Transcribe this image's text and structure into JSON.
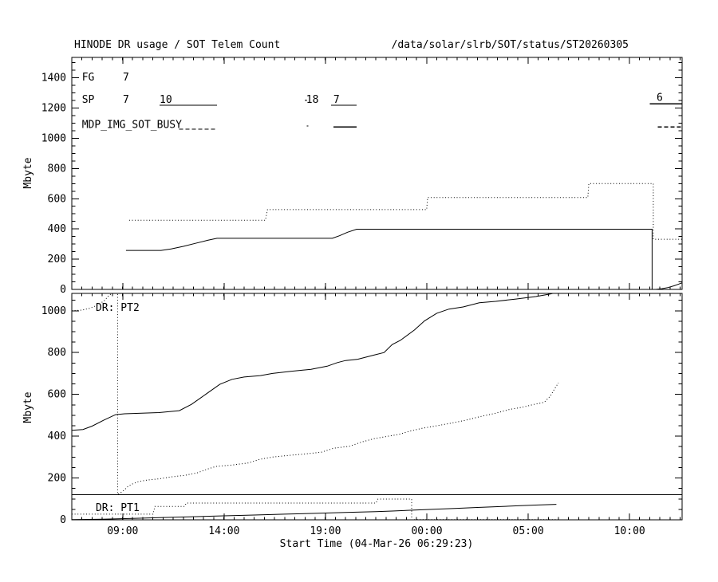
{
  "header": {
    "title": "HINODE DR usage / SOT Telem Count",
    "path": "/data/solar/slrb/SOT/status/ST20260305"
  },
  "colors": {
    "foreground": "#000000",
    "background": "#ffffff"
  },
  "chart_data": [
    {
      "id": "sot-telem-count-panel",
      "type": "line",
      "ylabel": "Mbyte",
      "ylim": [
        0,
        1535
      ],
      "yticks_major": [
        0,
        200,
        400,
        600,
        800,
        1000,
        1200,
        1400
      ],
      "ytick_minor_step": 50,
      "x_unit": "hours-since-start",
      "xlim": [
        0,
        30.1
      ],
      "xticks_major_hours": [
        2.51,
        7.51,
        12.51,
        17.51,
        22.51,
        27.51
      ],
      "xtick_labels": [],
      "xtick_minor_step_hours": 0.5,
      "grid": false,
      "series": [
        {
          "name": "telem-count-solid",
          "style": "solid",
          "points": [
            [
              2.67,
              258
            ],
            [
              4.4,
              258
            ],
            [
              4.9,
              268
            ],
            [
              5.5,
              285
            ],
            [
              6.1,
              305
            ],
            [
              6.7,
              325
            ],
            [
              7.16,
              338
            ],
            [
              12.85,
              338
            ],
            [
              13.2,
              355
            ],
            [
              13.6,
              378
            ],
            [
              14.05,
              398
            ],
            [
              28.62,
              398
            ],
            [
              28.62,
              0
            ],
            [
              28.8,
              0
            ],
            [
              29.1,
              5
            ],
            [
              29.4,
              12
            ],
            [
              29.7,
              24
            ],
            [
              29.95,
              36
            ],
            [
              30.1,
              44
            ]
          ]
        },
        {
          "name": "telem-count-dotted",
          "style": "dotted",
          "points": [
            [
              2.83,
              458
            ],
            [
              9.55,
              458
            ],
            [
              9.65,
              528
            ],
            [
              17.5,
              528
            ],
            [
              17.55,
              608
            ],
            [
              25.45,
              608
            ],
            [
              25.5,
              700
            ],
            [
              28.68,
              700
            ],
            [
              28.68,
              332
            ],
            [
              30.1,
              332
            ]
          ]
        }
      ],
      "annotations": {
        "texts": [
          {
            "text": "FG",
            "h": 0.5,
            "mb": 1402
          },
          {
            "text": "7",
            "h": 2.52,
            "mb": 1402
          },
          {
            "text": "SP",
            "h": 0.5,
            "mb": 1256
          },
          {
            "text": "7",
            "h": 2.52,
            "mb": 1256
          },
          {
            "text": "10",
            "h": 4.33,
            "mb": 1256
          },
          {
            "text": "18",
            "h": 11.56,
            "mb": 1256
          },
          {
            "text": "7",
            "h": 12.9,
            "mb": 1256
          },
          {
            "text": "6",
            "h": 28.84,
            "mb": 1268
          },
          {
            "text": "MDP_IMG_SOT_BUSY",
            "h": 0.5,
            "mb": 1088
          }
        ],
        "segments": [
          {
            "h1": 4.33,
            "h2": 7.16,
            "mb": 1218,
            "style": "solid"
          },
          {
            "h1": 12.78,
            "h2": 14.05,
            "mb": 1218,
            "style": "solid"
          },
          {
            "h1": 11.5,
            "h2": 11.58,
            "mb": 1252,
            "style": "solid"
          },
          {
            "h1": 28.5,
            "h2": 30.1,
            "mb": 1228,
            "style": "solid"
          },
          {
            "h1": 5.3,
            "h2": 7.16,
            "mb": 1060,
            "style": "dashed"
          },
          {
            "h1": 11.58,
            "h2": 11.66,
            "mb": 1082,
            "style": "solid"
          },
          {
            "h1": 12.9,
            "h2": 14.05,
            "mb": 1075,
            "style": "solid"
          },
          {
            "h1": 28.9,
            "h2": 30.1,
            "mb": 1075,
            "style": "dashed"
          }
        ]
      }
    },
    {
      "id": "dr-usage-panel",
      "type": "line",
      "ylabel": "Mbyte",
      "xlabel": "Start Time (04-Mar-26 06:29:23)",
      "ylim": [
        0,
        1083
      ],
      "yticks_major": [
        0,
        200,
        400,
        600,
        800,
        1000
      ],
      "ytick_minor_step": 50,
      "x_unit": "hours-since-start",
      "xlim": [
        0,
        30.1
      ],
      "xticks_major_hours": [
        2.51,
        7.51,
        12.51,
        17.51,
        22.51,
        27.51
      ],
      "xtick_labels": [
        "09:00",
        "14:00",
        "19:00",
        "00:00",
        "05:00",
        "10:00"
      ],
      "xtick_minor_step_hours": 0.5,
      "grid": false,
      "series": [
        {
          "name": "dr-pt2-solid",
          "style": "solid",
          "points": [
            [
              0,
              428
            ],
            [
              0.55,
              432
            ],
            [
              1.0,
              448
            ],
            [
              1.6,
              478
            ],
            [
              2.16,
              503
            ],
            [
              2.6,
              507
            ],
            [
              4.3,
              513
            ],
            [
              5.3,
              522
            ],
            [
              5.9,
              552
            ],
            [
              6.6,
              600
            ],
            [
              7.3,
              648
            ],
            [
              7.9,
              672
            ],
            [
              8.5,
              683
            ],
            [
              9.3,
              690
            ],
            [
              9.9,
              700
            ],
            [
              10.8,
              710
            ],
            [
              11.8,
              720
            ],
            [
              12.6,
              735
            ],
            [
              13.1,
              752
            ],
            [
              13.5,
              762
            ],
            [
              14.1,
              768
            ],
            [
              14.9,
              788
            ],
            [
              15.4,
              800
            ],
            [
              15.8,
              838
            ],
            [
              16.2,
              858
            ],
            [
              16.9,
              908
            ],
            [
              17.4,
              952
            ],
            [
              18.0,
              988
            ],
            [
              18.6,
              1008
            ],
            [
              19.3,
              1018
            ],
            [
              20.1,
              1038
            ],
            [
              20.9,
              1045
            ],
            [
              21.9,
              1056
            ],
            [
              22.9,
              1068
            ],
            [
              23.6,
              1080
            ],
            [
              24.0,
              1090
            ]
          ]
        },
        {
          "name": "dr-pt2-dotted",
          "style": "dotted",
          "points": [
            [
              0,
              1000
            ],
            [
              0.5,
              1003
            ],
            [
              0.9,
              1012
            ],
            [
              1.3,
              1028
            ],
            [
              1.6,
              1048
            ],
            [
              1.85,
              1075
            ],
            [
              2.0,
              1083
            ],
            [
              2.26,
              1083
            ],
            [
              2.26,
              122
            ],
            [
              2.5,
              135
            ],
            [
              2.75,
              158
            ],
            [
              3.0,
              172
            ],
            [
              3.3,
              183
            ],
            [
              3.7,
              190
            ],
            [
              4.3,
              196
            ],
            [
              4.9,
              205
            ],
            [
              5.6,
              213
            ],
            [
              6.2,
              225
            ],
            [
              6.7,
              243
            ],
            [
              7.1,
              255
            ],
            [
              7.9,
              262
            ],
            [
              8.7,
              272
            ],
            [
              9.3,
              290
            ],
            [
              9.9,
              300
            ],
            [
              10.7,
              308
            ],
            [
              11.5,
              315
            ],
            [
              12.3,
              323
            ],
            [
              12.9,
              342
            ],
            [
              13.7,
              352
            ],
            [
              14.3,
              372
            ],
            [
              14.9,
              388
            ],
            [
              15.5,
              398
            ],
            [
              16.1,
              408
            ],
            [
              16.7,
              425
            ],
            [
              17.3,
              438
            ],
            [
              17.9,
              448
            ],
            [
              18.7,
              462
            ],
            [
              19.4,
              476
            ],
            [
              20.2,
              495
            ],
            [
              20.9,
              510
            ],
            [
              21.6,
              528
            ],
            [
              22.2,
              538
            ],
            [
              22.8,
              552
            ],
            [
              23.3,
              562
            ],
            [
              23.6,
              592
            ],
            [
              23.8,
              625
            ],
            [
              24.0,
              655
            ]
          ]
        },
        {
          "name": "dr-pt1-solid",
          "style": "solid",
          "points": [
            [
              0,
              1
            ],
            [
              1.5,
              3
            ],
            [
              3,
              7
            ],
            [
              4.5,
              11
            ],
            [
              6,
              15
            ],
            [
              7.5,
              19
            ],
            [
              9,
              23
            ],
            [
              10.5,
              27
            ],
            [
              12,
              31
            ],
            [
              13.5,
              35
            ],
            [
              15,
              39
            ],
            [
              15.8,
              42
            ],
            [
              16.8,
              46
            ],
            [
              18,
              51
            ],
            [
              19,
              55
            ],
            [
              20,
              59
            ],
            [
              21,
              63
            ],
            [
              22,
              67
            ],
            [
              23,
              71
            ],
            [
              23.9,
              74
            ]
          ]
        },
        {
          "name": "dr-pt1-dotted",
          "style": "dotted",
          "points": [
            [
              0,
              27
            ],
            [
              4.0,
              27
            ],
            [
              4.1,
              64
            ],
            [
              5.55,
              64
            ],
            [
              5.65,
              80
            ],
            [
              15.0,
              80
            ],
            [
              15.1,
              99
            ],
            [
              16.76,
              99
            ],
            [
              16.76,
              0
            ],
            [
              17.0,
              1
            ],
            [
              23.9,
              1
            ]
          ]
        },
        {
          "name": "dr-limit-line",
          "style": "solid",
          "points": [
            [
              0,
              120
            ],
            [
              30.1,
              120
            ]
          ]
        }
      ],
      "annotations": {
        "texts": [
          {
            "text": "DR: PT2",
            "h": 1.18,
            "mb": 1015
          },
          {
            "text": "DR: PT1",
            "h": 1.18,
            "mb": 57
          }
        ],
        "segments": []
      }
    }
  ]
}
